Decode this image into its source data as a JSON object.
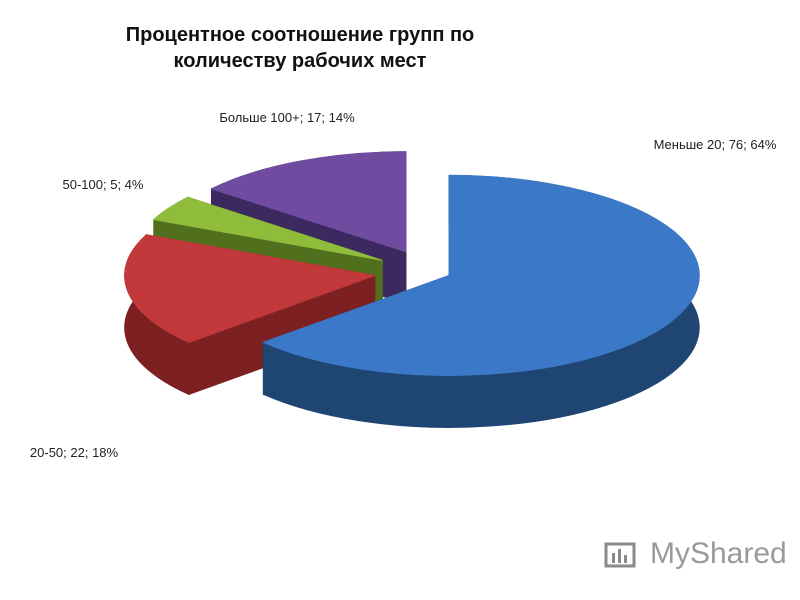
{
  "chart_data": {
    "type": "pie3d",
    "title": "Процентное соотношение групп по количеству рабочих мест",
    "values": [
      76,
      22,
      5,
      17
    ],
    "value_labels": [
      "Меньше 20; 76; 64%",
      "20-50; 22; 18%",
      "50-100; 5; 4%",
      "Больше 100+; 17; 14%"
    ],
    "colors": [
      "#3b78c7",
      "#c2393b",
      "#8fbc3b",
      "#6f4c9f"
    ],
    "side_colors": [
      "#1f4573",
      "#7d2022",
      "#50701e",
      "#3c2960"
    ]
  },
  "watermark": "MyShared"
}
